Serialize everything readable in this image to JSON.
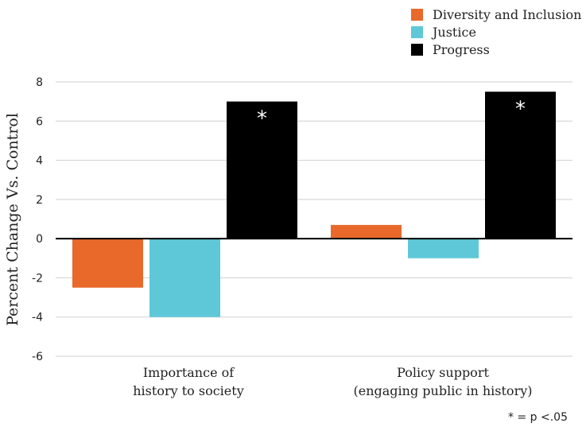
{
  "chart_data": {
    "type": "bar",
    "ylabel": "Percent Change Vs. Control",
    "ylim": [
      -6,
      8
    ],
    "yticks": [
      -6,
      -4,
      -2,
      0,
      2,
      4,
      6,
      8
    ],
    "grid": true,
    "legend_position": "top-right",
    "categories": [
      {
        "line1": "Importance of",
        "line2": "history to society"
      },
      {
        "line1": "Policy support",
        "line2": "(engaging public in history)"
      }
    ],
    "series": [
      {
        "name": "Diversity and Inclusion",
        "color": "#e8692a",
        "values": [
          -2.5,
          0.7
        ]
      },
      {
        "name": "Justice",
        "color": "#5fc8d8",
        "values": [
          -4.0,
          -1.0
        ]
      },
      {
        "name": "Progress",
        "color": "#000000",
        "values": [
          7.0,
          7.5
        ]
      }
    ],
    "annotations": [
      {
        "series": 2,
        "category": 0,
        "text": "*"
      },
      {
        "series": 2,
        "category": 1,
        "text": "*"
      }
    ],
    "footnote": "* = p <.05"
  }
}
